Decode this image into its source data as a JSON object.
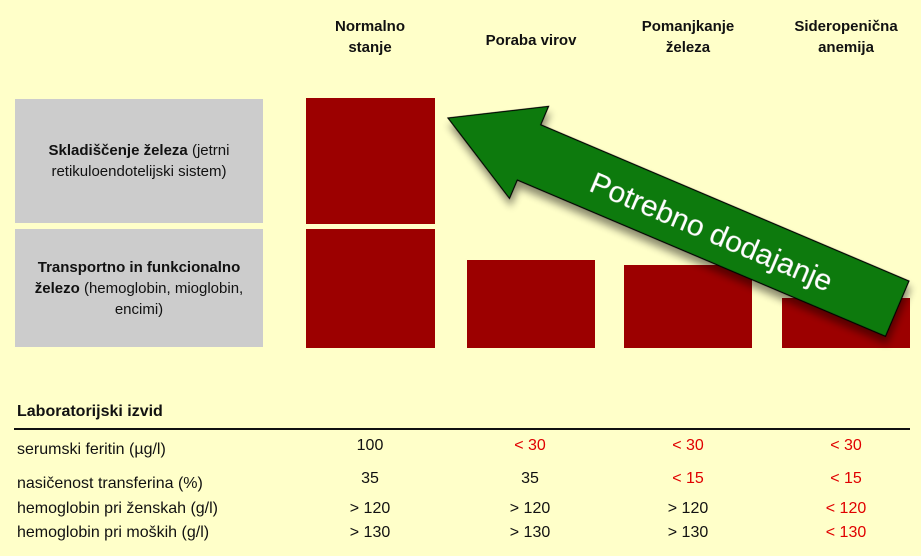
{
  "columns": [
    {
      "line1": "Normalno",
      "line2": "stanje"
    },
    {
      "line1": "Poraba virov",
      "line2": ""
    },
    {
      "line1": "Pomanjkanje",
      "line2": "železa"
    },
    {
      "line1": "Sideropenična",
      "line2": "anemija"
    }
  ],
  "rows": {
    "storage": {
      "bold": "Skladiščenje železa",
      "rest1": " (jetrni",
      "rest2": "retikuloendotelijski sistem)"
    },
    "transport": {
      "bold1": "Transportno in funkcionalno",
      "bold2": "železo",
      "rest1": " (hemoglobin, mioglobin,",
      "rest2": "encimi)"
    }
  },
  "arrow_label": "Potrebno dodajanje",
  "colors": {
    "bar": "#9c0000",
    "arrow": "#0a7a0a",
    "abnormal": "#e00000",
    "background": "#ffffc9",
    "label_box": "#cccccc"
  },
  "chart_data": {
    "type": "bar",
    "categories": [
      "Normalno stanje",
      "Poraba virov",
      "Pomanjkanje železa",
      "Sideropenična anemija"
    ],
    "series": [
      {
        "name": "Skladiščenje železa",
        "values": [
          1,
          0,
          0,
          0
        ]
      },
      {
        "name": "Transportno in funkcionalno železo",
        "values": [
          1,
          0.74,
          0.7,
          0.42
        ]
      }
    ]
  },
  "lab": {
    "title": "Laboratorijski izvid",
    "rows": [
      {
        "name": "serumski feritin (µg/l)",
        "values": [
          "100",
          "< 30",
          "< 30",
          "< 30"
        ],
        "abnormal": [
          false,
          true,
          true,
          true
        ]
      },
      {
        "name": "nasičenost transferina (%)",
        "values": [
          "35",
          "35",
          "< 15",
          "< 15"
        ],
        "abnormal": [
          false,
          false,
          true,
          true
        ]
      },
      {
        "name": "hemoglobin pri ženskah (g/l)",
        "values": [
          "> 120",
          "> 120",
          "> 120",
          "< 120"
        ],
        "abnormal": [
          false,
          false,
          false,
          true
        ]
      },
      {
        "name": "hemoglobin pri moških (g/l)",
        "values": [
          "> 130",
          "> 130",
          "> 130",
          "< 130"
        ],
        "abnormal": [
          false,
          false,
          false,
          true
        ]
      }
    ]
  }
}
